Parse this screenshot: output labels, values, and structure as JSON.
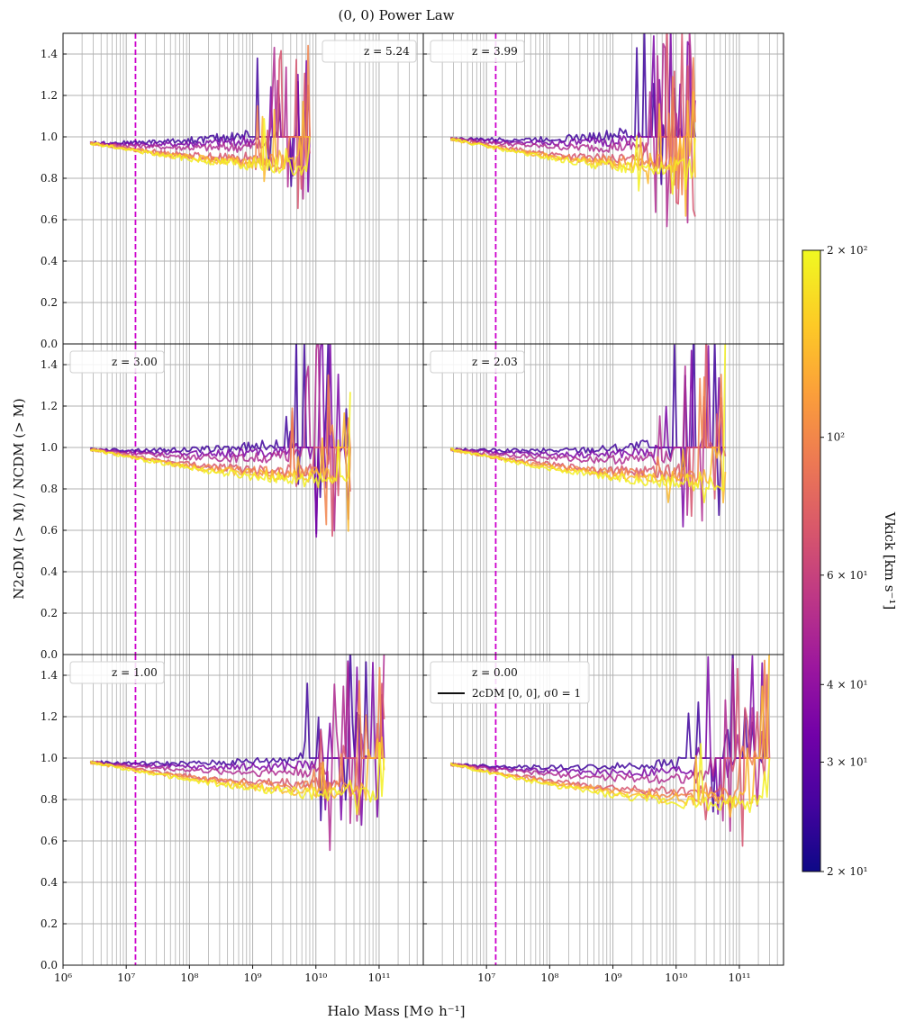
{
  "chart_data": {
    "type": "line",
    "title": "(0, 0) Power Law",
    "xlabel": "Halo Mass [M⊙ h⁻¹]",
    "ylabel": "N2cDM (> M) / NCDM (> M)",
    "xscale": "log",
    "xlim": [
      1000000,
      500000000000
    ],
    "ylim": [
      0.0,
      1.5
    ],
    "yticks": [
      0.0,
      0.2,
      0.4,
      0.6,
      0.8,
      1.0,
      1.2,
      1.4
    ],
    "ytick_labels": [
      "0.0",
      "0.2",
      "0.4",
      "0.6",
      "0.8",
      "1.0",
      "1.2",
      "1.4"
    ],
    "xtick_labels_left": [
      "10⁶",
      "10⁷",
      "10⁸",
      "10⁹",
      "10¹⁰",
      "10¹¹"
    ],
    "xtick_labels_right": [
      "10⁷",
      "10⁸",
      "10⁹",
      "10¹⁰",
      "10¹¹"
    ],
    "grid": true,
    "reference_line": {
      "x": 14000000,
      "style": "dashed",
      "color": "#cc00cc"
    },
    "colorbar": {
      "label": "Vkick [km s⁻¹]",
      "scale": "log",
      "range": [
        20,
        200
      ],
      "ticks": [
        {
          "value": 200,
          "label": "2 × 10²"
        },
        {
          "value": 100,
          "label": "10²"
        },
        {
          "value": 60,
          "label": "6 × 10¹"
        },
        {
          "value": 40,
          "label": "4 × 10¹"
        },
        {
          "value": 30,
          "label": "3 × 10¹"
        },
        {
          "value": 20,
          "label": "2 × 10¹"
        }
      ],
      "colormap": [
        "#0d0887",
        "#46039f",
        "#7201a8",
        "#9c179e",
        "#bd3786",
        "#d8576b",
        "#ed7953",
        "#fb9f3a",
        "#fdca26",
        "#f0f921"
      ]
    },
    "legend_extra": "2cDM [0, 0], σ0 = 1",
    "series_vkick": [
      25,
      35,
      50,
      70,
      100,
      140,
      190
    ],
    "panels": [
      {
        "z_label": "z = 5.24",
        "legend_loc": "top-right",
        "end": 8000000000,
        "ymin_start": 0.97,
        "dip": 0.09,
        "spike": 0.35,
        "seed": 1
      },
      {
        "z_label": "z = 3.99",
        "legend_loc": "top-left",
        "end": 20000000000,
        "ymin_start": 0.99,
        "dip": 0.12,
        "spike": 0.45,
        "seed": 2
      },
      {
        "z_label": "z = 3.00",
        "legend_loc": "top-left",
        "end": 35000000000,
        "ymin_start": 0.99,
        "dip": 0.12,
        "spike": 0.45,
        "seed": 3
      },
      {
        "z_label": "z = 2.03",
        "legend_loc": "top-left",
        "end": 60000000000,
        "ymin_start": 0.99,
        "dip": 0.13,
        "spike": 0.45,
        "seed": 4
      },
      {
        "z_label": "z = 1.00",
        "legend_loc": "top-left",
        "end": 120000000000,
        "ymin_start": 0.98,
        "dip": 0.13,
        "spike": 0.45,
        "seed": 5
      },
      {
        "z_label": "z = 0.00",
        "legend_loc": "top-left",
        "end": 300000000000,
        "ymin_start": 0.97,
        "dip": 0.16,
        "spike": 0.45,
        "seed": 6
      }
    ]
  }
}
